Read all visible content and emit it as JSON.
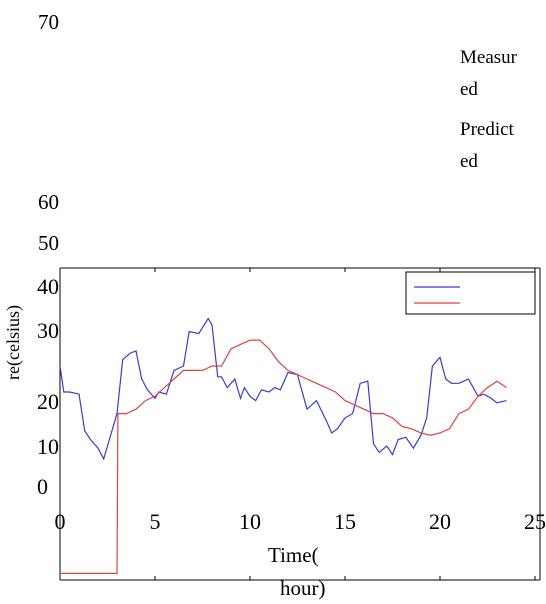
{
  "chart_data": {
    "type": "line",
    "xlabel_line1": "Time(",
    "xlabel_line2": "hour)",
    "ylabel": "re(celsius)",
    "xlim": [
      0,
      25
    ],
    "x_ticks": [
      "0",
      "5",
      "10",
      "15",
      "20",
      "25"
    ],
    "y_ticks": [
      "0",
      "10",
      "20",
      "30",
      "40",
      "50",
      "60",
      "70"
    ],
    "legend": [
      "Measured",
      "Predicted"
    ],
    "legend_text_lines": [
      "Measur",
      "ed",
      "Predict",
      "ed"
    ],
    "colors": {
      "measured": "#3b3bcf",
      "predicted": "#d94444"
    },
    "series": [
      {
        "name": "Measured",
        "x": [
          0,
          0.2,
          0.5,
          1,
          1.3,
          1.6,
          2,
          2.3,
          2.6,
          3,
          3.3,
          3.7,
          4.0,
          4.3,
          4.6,
          5.0,
          5.2,
          5.6,
          6.0,
          6.5,
          6.8,
          7.3,
          7.8,
          8.0,
          8.3,
          8.5,
          8.8,
          9.2,
          9.5,
          9.7,
          10.0,
          10.3,
          10.6,
          11.0,
          11.3,
          11.6,
          12.0,
          12.5,
          13.0,
          13.5,
          14.0,
          14.3,
          14.6,
          15.0,
          15.4,
          15.8,
          16.2,
          16.5,
          16.8,
          17.2,
          17.5,
          17.8,
          18.2,
          18.6,
          19.0,
          19.3,
          19.6,
          20.0,
          20.3,
          20.6,
          21.0,
          21.5,
          22.0,
          22.3,
          22.7,
          23.0,
          23.5
        ],
        "y": [
          28,
          22,
          22,
          21.5,
          13,
          11,
          9,
          6.5,
          11,
          17,
          29.5,
          31,
          31.5,
          25,
          22.5,
          20.5,
          22,
          21.5,
          27,
          28,
          36,
          35.5,
          39,
          37.5,
          25.5,
          25.5,
          23,
          25,
          20.5,
          23,
          21,
          20,
          22.5,
          22,
          23,
          22.5,
          26.5,
          26,
          18,
          20,
          15.5,
          12.5,
          13.5,
          16,
          17,
          24,
          24.5,
          10,
          8,
          9.5,
          7.5,
          11,
          11.5,
          9,
          12,
          16,
          28,
          30,
          25,
          24,
          24,
          25,
          21,
          21.5,
          20.5,
          19.5,
          20
        ]
      },
      {
        "name": "Predicted",
        "x": [
          0,
          1,
          2,
          3.0,
          3.05,
          3.5,
          4,
          4.5,
          5,
          5.5,
          6,
          6.5,
          7,
          7.5,
          8,
          8.5,
          9,
          9.5,
          10,
          10.5,
          11,
          11.5,
          12,
          12.5,
          13,
          13.5,
          14,
          14.5,
          15,
          15.5,
          16,
          16.5,
          17,
          17.5,
          18,
          18.5,
          19,
          19.5,
          20,
          20.5,
          21,
          21.5,
          22,
          22.5,
          23,
          23.5
        ],
        "y": [
          -20,
          -20,
          -20,
          -20,
          17,
          17,
          18,
          20,
          21,
          23,
          25,
          27,
          27,
          27,
          28,
          28,
          32,
          33,
          34,
          34,
          32,
          29,
          27,
          26,
          25,
          24,
          23,
          22,
          20,
          19,
          18,
          17,
          17,
          16,
          14,
          13.5,
          12.5,
          12,
          12.5,
          13.5,
          17,
          18,
          21,
          23,
          24.5,
          23
        ]
      }
    ]
  }
}
